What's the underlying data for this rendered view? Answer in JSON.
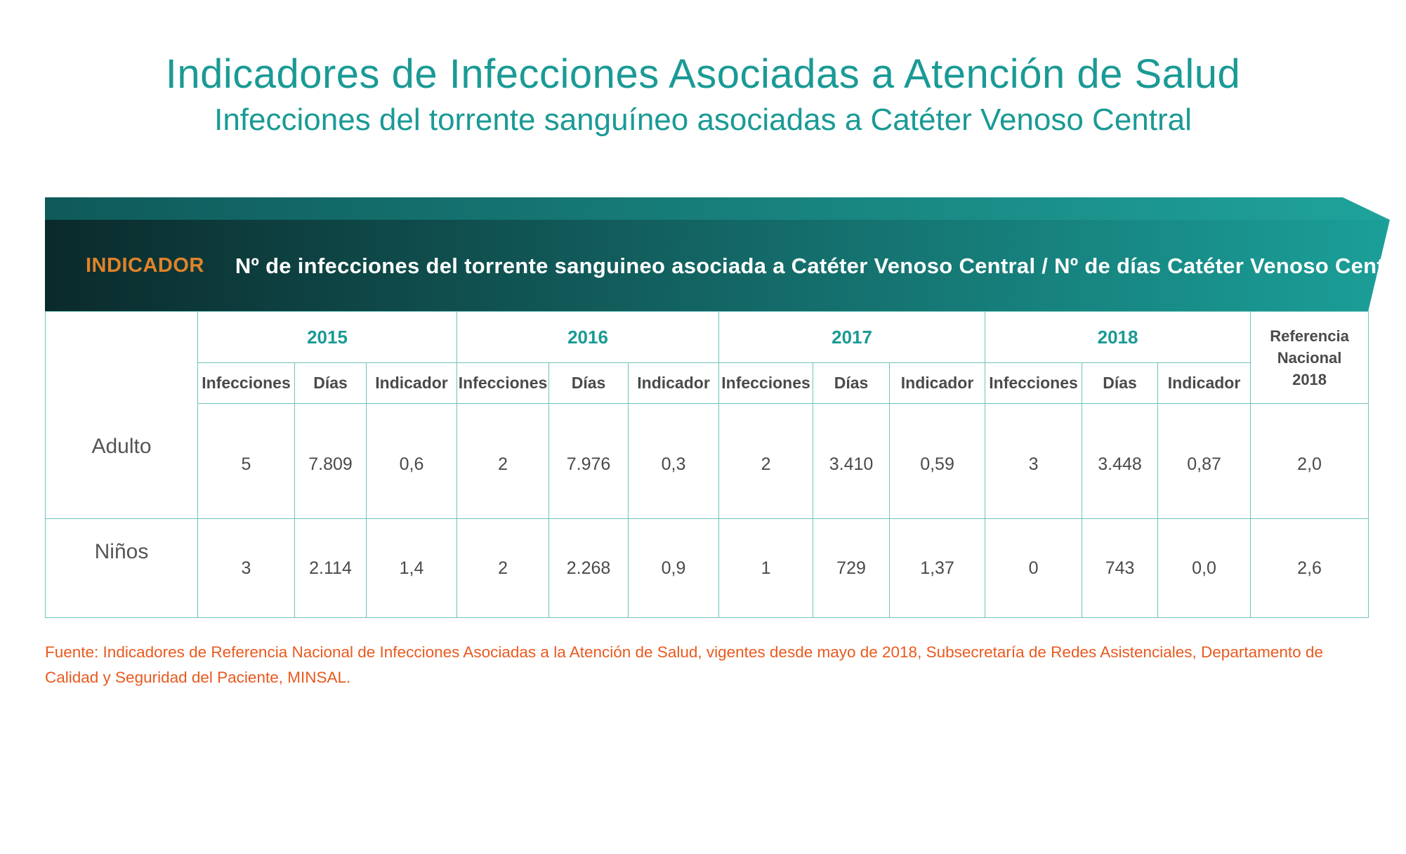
{
  "header": {
    "title": "Indicadores de Infecciones Asociadas a Atención de Salud",
    "subtitle": "Infecciones del torrente sanguíneo asociadas a Catéter Venoso Central"
  },
  "indicator": {
    "label": "INDICADOR",
    "formula": "Nº de infecciones del torrente sanguineo asociada a Catéter Venoso Central / Nº de días Catéter Venoso Central"
  },
  "table": {
    "years": [
      "2015",
      "2016",
      "2017",
      "2018"
    ],
    "columns": [
      "Infecciones",
      "Días",
      "Indicador"
    ],
    "reference_header": [
      "Referencia",
      "Nacional",
      "2018"
    ],
    "rows": [
      {
        "label": "Adulto",
        "values": [
          "5",
          "7.809",
          "0,6",
          "2",
          "7.976",
          "0,3",
          "2",
          "3.410",
          "0,59",
          "3",
          "3.448",
          "0,87"
        ],
        "reference": "2,0"
      },
      {
        "label": "Niños",
        "values": [
          "3",
          "2.114",
          "1,4",
          "2",
          "2.268",
          "0,9",
          "1",
          "729",
          "1,37",
          "0",
          "743",
          "0,0"
        ],
        "reference": "2,6"
      }
    ]
  },
  "source": "Fuente: Indicadores de Referencia Nacional de Infecciones Asociadas a la Atención de Salud, vigentes desde mayo de 2018, Subsecretaría de Redes Asistenciales, Departamento de Calidad y Seguridad del Paciente, MINSAL.",
  "colors": {
    "teal": "#1a9a95",
    "dark_teal": "#0d2f2f",
    "orange_label": "#e0832a",
    "source_text": "#e85a1f",
    "grid": "#6fc3bd"
  }
}
